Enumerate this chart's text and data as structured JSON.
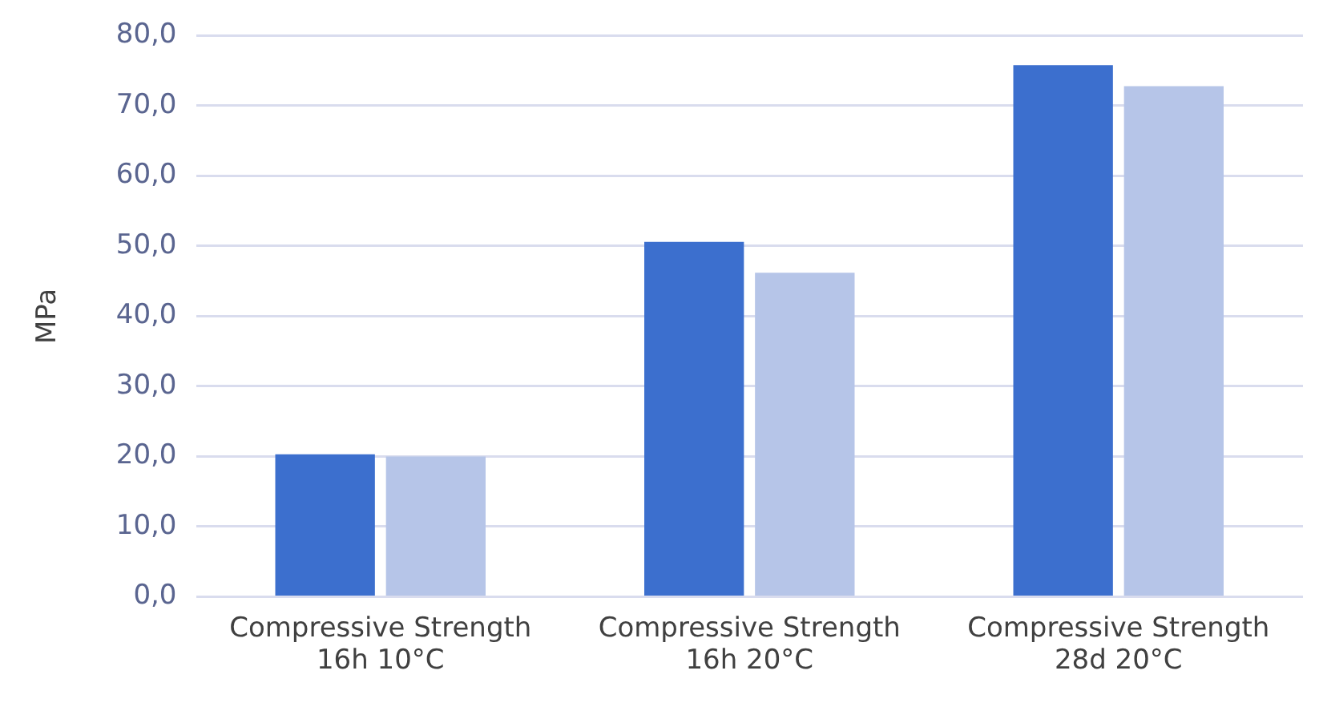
{
  "chart_data": {
    "type": "bar",
    "ylabel": "MPa",
    "categories": [
      "Compressive Strength\n16h 10°C",
      "Compressive Strength\n16h 20°C",
      "Compressive Strength\n28d 20°C"
    ],
    "series": [
      {
        "color": "#3c6fce",
        "values": [
          20.3,
          50.6,
          75.8
        ]
      },
      {
        "color": "#b6c5e8",
        "values": [
          20.0,
          46.2,
          72.8
        ]
      }
    ],
    "ylim": [
      0,
      80
    ],
    "yticks": [
      {
        "value": 0,
        "label": "0,0"
      },
      {
        "value": 10,
        "label": "10,0"
      },
      {
        "value": 20,
        "label": "20,0"
      },
      {
        "value": 30,
        "label": "30,0"
      },
      {
        "value": 40,
        "label": "40,0"
      },
      {
        "value": 50,
        "label": "50,0"
      },
      {
        "value": 60,
        "label": "60,0"
      },
      {
        "value": 70,
        "label": "70,0"
      },
      {
        "value": 80,
        "label": "80,0"
      }
    ],
    "grid": "y",
    "legend": false
  }
}
